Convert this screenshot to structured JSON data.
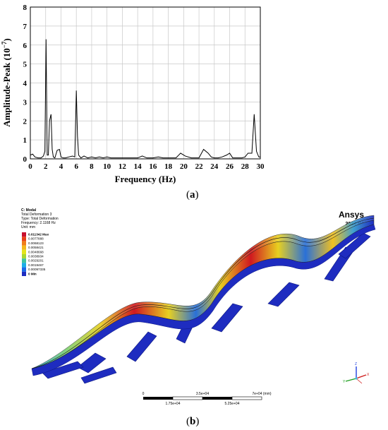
{
  "chart_data": [
    {
      "type": "line",
      "xlabel": "Frequency (Hz)",
      "ylabel_main": "Amplitude-Peak (10",
      "ylabel_exp": "−7",
      "ylabel_close": ")",
      "xlim": [
        0,
        30
      ],
      "ylim": [
        0,
        8
      ],
      "xticks": [
        0,
        2,
        4,
        6,
        8,
        10,
        12,
        14,
        16,
        18,
        20,
        22,
        24,
        26,
        28,
        30
      ],
      "yticks": [
        0,
        1,
        2,
        3,
        4,
        5,
        6,
        7,
        8
      ],
      "grid": true,
      "series": [
        {
          "x": [
            0,
            0.3,
            0.6,
            1.0,
            1.4,
            1.7,
            1.9,
            2.05,
            2.2,
            2.35,
            2.5,
            2.7,
            2.85,
            3.0,
            3.2,
            3.5,
            3.8,
            4.0,
            4.3,
            4.6,
            5.0,
            5.5,
            5.8,
            6.0,
            6.15,
            6.3,
            6.6,
            7.0,
            7.5,
            8.0,
            8.5,
            9.0,
            9.5,
            10.0,
            10.5,
            11.0,
            11.5,
            12.0,
            13.0,
            14.0,
            14.6,
            15.2,
            16.0,
            16.7,
            17.3,
            18.0,
            19.0,
            19.6,
            20.2,
            21.0,
            22.0,
            22.6,
            23.2,
            23.6,
            24.0,
            24.5,
            25.0,
            25.6,
            26.0,
            26.4,
            27.0,
            27.6,
            28.0,
            28.4,
            28.9,
            29.2,
            29.5,
            29.8,
            30.0
          ],
          "y": [
            0.2,
            0.25,
            0.1,
            0.05,
            0.05,
            0.15,
            0.4,
            6.3,
            0.2,
            0.2,
            2.0,
            2.35,
            0.5,
            0.1,
            0.05,
            0.45,
            0.5,
            0.1,
            0.05,
            0.05,
            0.1,
            0.15,
            0.1,
            3.6,
            1.2,
            0.2,
            0.05,
            0.15,
            0.05,
            0.1,
            0.05,
            0.1,
            0.05,
            0.1,
            0.05,
            0.05,
            0.05,
            0.05,
            0.05,
            0.05,
            0.15,
            0.05,
            0.05,
            0.1,
            0.05,
            0.05,
            0.05,
            0.3,
            0.15,
            0.05,
            0.05,
            0.5,
            0.3,
            0.1,
            0.05,
            0.05,
            0.1,
            0.2,
            0.3,
            0.05,
            0.05,
            0.05,
            0.1,
            0.3,
            0.3,
            2.35,
            0.4,
            0.1,
            0.1
          ]
        }
      ]
    },
    {
      "type": "contour",
      "header": [
        "C: Modal",
        "Total Deformation 3",
        "Type: Total Deformation",
        "Frequency: 2.1168 Hz",
        "Unit: mm"
      ],
      "legend_values": [
        "0.011342 Max",
        "0.0077888",
        "0.0068123",
        "0.0058421",
        "0.0048668",
        "0.0038934",
        "0.0029201",
        "0.0019467",
        "0.00097335",
        "0 Min"
      ],
      "legend_colors": [
        "#c8102e",
        "#e8401a",
        "#f07d1a",
        "#f4b81c",
        "#e4e41c",
        "#a8d832",
        "#3fc4a0",
        "#1aaee8",
        "#1b6ae8",
        "#1e2cc0"
      ],
      "brand": "Ansys",
      "release": "2023 R1",
      "scale_labels_top": [
        "0",
        "3.5e+04",
        "7e+04 (mm)"
      ],
      "scale_labels_bottom": [
        "1.75e+04",
        "5.25e+04"
      ],
      "triad_labels": [
        "Y",
        "Z",
        "X"
      ]
    }
  ],
  "captions": {
    "a": "a",
    "b": "b"
  }
}
